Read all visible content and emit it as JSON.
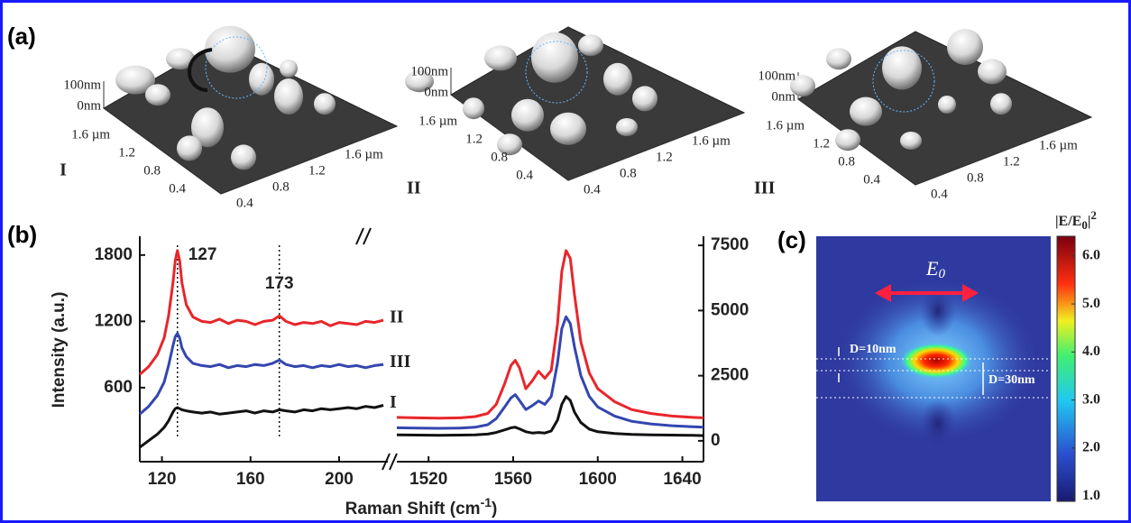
{
  "afm": {
    "label": "(a)",
    "panels": [
      {
        "name": "I",
        "z_ticks": [
          "100nm",
          "0nm"
        ],
        "y_ticks": [
          "1.6 µm",
          "1.2",
          "0.8",
          "0.4"
        ],
        "x_ticks": [
          "0.4",
          "0.8",
          "1.2",
          "1.6 µm"
        ]
      },
      {
        "name": "II",
        "z_ticks": [
          "100nm",
          "0nm"
        ],
        "y_ticks": [
          "1.6 µm",
          "1.2",
          "0.8",
          "0.4"
        ],
        "x_ticks": [
          "0.4",
          "0.8",
          "1.2",
          "1.6 µm"
        ]
      },
      {
        "name": "III",
        "z_ticks": [
          "100nm",
          "0nm"
        ],
        "y_ticks": [
          "1.6 µm",
          "1.2",
          "0.8",
          "0.4"
        ],
        "x_ticks": [
          "0.4",
          "0.8",
          "1.2",
          "1.6 µm"
        ]
      }
    ]
  },
  "chart_data": [
    {
      "type": "line",
      "label": "(b)",
      "y_label": "Intensity (a.u.)",
      "x_label": {
        "main": "Raman Shift (cm",
        "sup": "-1",
        "end": ")"
      },
      "xlim": [
        110,
        222
      ],
      "xticks": [
        120,
        160,
        200
      ],
      "ylim": [
        -70,
        1970
      ],
      "yticks": [
        600,
        1200,
        1800
      ],
      "x2lim": [
        1505,
        1650
      ],
      "x2ticks": [
        1520,
        1560,
        1600,
        1640
      ],
      "y2lim": [
        -800,
        7850
      ],
      "y2ticks": [
        0,
        2500,
        5000,
        7500
      ],
      "peak_lines": [
        127,
        173
      ],
      "series": [
        {
          "name": "II",
          "color": "#e8262b",
          "x": [
            110,
            114,
            118,
            121,
            123,
            125,
            126,
            127,
            128,
            129,
            131,
            134,
            138,
            142,
            146,
            150,
            154,
            158,
            162,
            166,
            170,
            173,
            176,
            180,
            184,
            188,
            192,
            196,
            200,
            204,
            208,
            212,
            216,
            220
          ],
          "values": [
            720,
            790,
            900,
            1050,
            1250,
            1550,
            1750,
            1840,
            1750,
            1550,
            1350,
            1240,
            1200,
            1190,
            1220,
            1180,
            1210,
            1200,
            1170,
            1200,
            1210,
            1250,
            1200,
            1170,
            1190,
            1180,
            1200,
            1160,
            1190,
            1180,
            1170,
            1200,
            1190,
            1210
          ]
        },
        {
          "name": "III",
          "color": "#3346b0",
          "x": [
            110,
            114,
            118,
            121,
            123,
            125,
            126,
            127,
            128,
            129,
            131,
            134,
            138,
            142,
            146,
            150,
            154,
            158,
            162,
            166,
            170,
            173,
            176,
            180,
            184,
            188,
            192,
            196,
            200,
            204,
            208,
            212,
            216,
            220
          ],
          "values": [
            360,
            430,
            530,
            650,
            800,
            980,
            1060,
            1090,
            1050,
            960,
            880,
            820,
            800,
            790,
            810,
            780,
            800,
            790,
            810,
            800,
            820,
            850,
            810,
            790,
            800,
            780,
            800,
            790,
            810,
            790,
            800,
            780,
            800,
            810
          ]
        },
        {
          "name": "I",
          "color": "#111111",
          "x": [
            110,
            114,
            118,
            121,
            123,
            125,
            126,
            127,
            128,
            129,
            131,
            134,
            138,
            142,
            146,
            150,
            154,
            158,
            162,
            166,
            170,
            173,
            176,
            180,
            184,
            188,
            192,
            196,
            200,
            204,
            208,
            212,
            216,
            220
          ],
          "values": [
            60,
            120,
            180,
            240,
            300,
            380,
            410,
            420,
            410,
            400,
            390,
            380,
            370,
            380,
            360,
            370,
            380,
            390,
            370,
            390,
            380,
            400,
            390,
            380,
            400,
            390,
            410,
            400,
            410,
            420,
            410,
            430,
            420,
            440
          ]
        },
        {
          "axis": "y2",
          "color": "#e8262b",
          "x": [
            1505,
            1515,
            1525,
            1535,
            1542,
            1548,
            1552,
            1556,
            1559,
            1561,
            1563,
            1566,
            1569,
            1572,
            1575,
            1578,
            1581,
            1583,
            1585,
            1587,
            1589,
            1592,
            1596,
            1600,
            1608,
            1616,
            1625,
            1635,
            1645,
            1650
          ],
          "values": [
            900,
            880,
            870,
            880,
            930,
            1050,
            1400,
            2200,
            2900,
            3090,
            2800,
            2000,
            2300,
            2670,
            2400,
            2700,
            4500,
            6500,
            7300,
            7000,
            5600,
            3800,
            2600,
            2000,
            1500,
            1200,
            1050,
            950,
            900,
            880
          ]
        },
        {
          "axis": "y2",
          "color": "#3346b0",
          "x": [
            1505,
            1515,
            1525,
            1535,
            1542,
            1548,
            1552,
            1556,
            1559,
            1561,
            1563,
            1566,
            1569,
            1572,
            1575,
            1578,
            1581,
            1583,
            1585,
            1587,
            1589,
            1592,
            1596,
            1600,
            1608,
            1616,
            1625,
            1635,
            1645,
            1650
          ],
          "values": [
            500,
            490,
            480,
            490,
            520,
            620,
            850,
            1300,
            1650,
            1770,
            1550,
            1200,
            1350,
            1530,
            1400,
            1700,
            3000,
            4300,
            4760,
            4500,
            3600,
            2500,
            1700,
            1300,
            950,
            750,
            650,
            580,
            540,
            520
          ]
        },
        {
          "axis": "y2",
          "color": "#111111",
          "x": [
            1505,
            1515,
            1525,
            1535,
            1542,
            1548,
            1552,
            1556,
            1559,
            1561,
            1563,
            1566,
            1569,
            1572,
            1575,
            1578,
            1581,
            1583,
            1585,
            1587,
            1589,
            1592,
            1596,
            1600,
            1608,
            1616,
            1625,
            1635,
            1645,
            1650
          ],
          "values": [
            230,
            220,
            210,
            220,
            230,
            260,
            320,
            420,
            500,
            520,
            460,
            350,
            300,
            320,
            300,
            380,
            800,
            1400,
            1700,
            1550,
            1100,
            700,
            450,
            350,
            280,
            250,
            230,
            220,
            210,
            200
          ]
        }
      ]
    },
    {
      "type": "heatmap",
      "label": "(c)",
      "field_label": {
        "main": "E",
        "sub": "0"
      },
      "annotations": [
        "D=10nm",
        "D=30nm"
      ],
      "colorbar": {
        "title": {
          "main": "|E/E",
          "sub": "0",
          "end": "|",
          "sup": "2"
        },
        "lim": [
          0.89,
          6.41
        ],
        "ticks": [
          {
            "value": 1,
            "label": "1.0"
          },
          {
            "value": 2,
            "label": "2.0"
          },
          {
            "value": 3,
            "label": "3.0"
          },
          {
            "value": 4,
            "label": "4.0"
          },
          {
            "value": 5,
            "label": "5.0"
          },
          {
            "value": 6,
            "label": "6.0"
          }
        ]
      }
    }
  ]
}
